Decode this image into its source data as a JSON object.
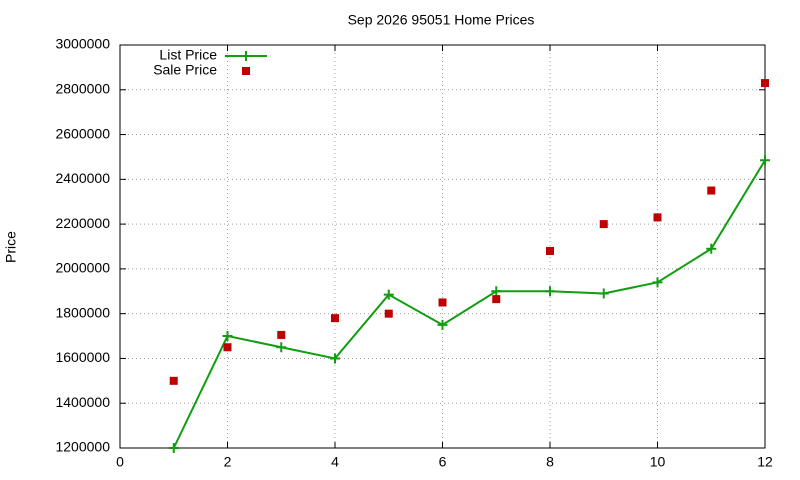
{
  "chart_data": {
    "type": "line",
    "title": "Sep 2026 95051 Home Prices",
    "y_label": "Price",
    "x": [
      1,
      2,
      3,
      4,
      5,
      6,
      7,
      8,
      9,
      10,
      11,
      12
    ],
    "series": [
      {
        "name": "List Price",
        "color": "#109e10",
        "mode": "lines+markers",
        "values": [
          1200000,
          1700000,
          1650000,
          1600000,
          1885000,
          1750000,
          1900000,
          1900000,
          1890000,
          1940000,
          2090000,
          2485000
        ]
      },
      {
        "name": "Sale Price",
        "color": "#c00000",
        "mode": "markers",
        "values": [
          1500000,
          1650000,
          1705000,
          1780000,
          1800000,
          1850000,
          1865000,
          2080000,
          2200000,
          2230000,
          2350000,
          2830000
        ]
      }
    ],
    "xlim": [
      0,
      12
    ],
    "xticks": [
      0,
      2,
      4,
      6,
      8,
      10,
      12
    ],
    "ylim": [
      1200000,
      3000000
    ],
    "yticks": [
      1200000,
      1400000,
      1600000,
      1800000,
      2000000,
      2200000,
      2400000,
      2600000,
      2800000,
      3000000
    ],
    "grid": true,
    "legend": "top-left"
  }
}
